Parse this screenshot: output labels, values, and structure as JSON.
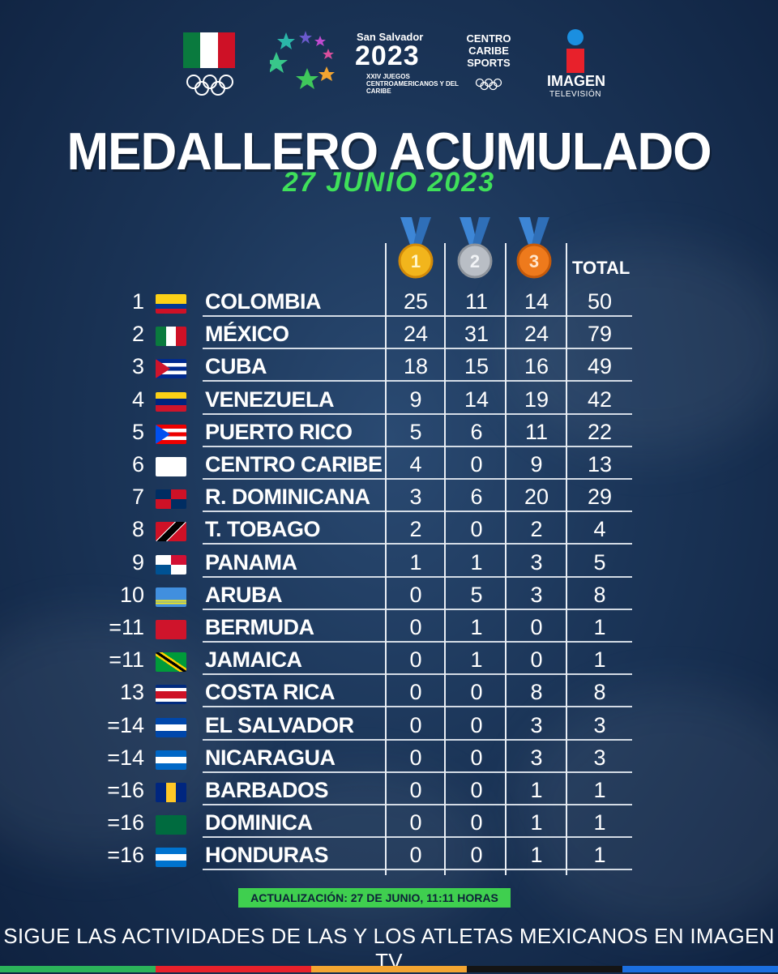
{
  "header": {
    "ss_line1": "San Salvador",
    "ss_year": "2023",
    "ss_sub": "XXIV JUEGOS CENTROAMERICANOS Y DEL CARIBE",
    "ccs": "CENTRO CARIBE SPORTS",
    "imagen": "IMAGEN",
    "imagen_sub": "TELEVISIÓN"
  },
  "title": "MEDALLERO ACUMULADO",
  "subtitle": "27 JUNIO 2023",
  "medals": {
    "gold_label": "1",
    "silver_label": "2",
    "bronze_label": "3",
    "total_label": "TOTAL",
    "colors": {
      "gold": "#f2b51c",
      "silver": "#b9bec5",
      "bronze": "#ee7a1c",
      "ribbon": "#3d86d6"
    }
  },
  "rows": [
    {
      "rank": "1",
      "country": "COLOMBIA",
      "gold": "25",
      "silver": "11",
      "bronze": "14",
      "total": "50"
    },
    {
      "rank": "2",
      "country": "MÉXICO",
      "gold": "24",
      "silver": "31",
      "bronze": "24",
      "total": "79"
    },
    {
      "rank": "3",
      "country": "CUBA",
      "gold": "18",
      "silver": "15",
      "bronze": "16",
      "total": "49"
    },
    {
      "rank": "4",
      "country": "VENEZUELA",
      "gold": "9",
      "silver": "14",
      "bronze": "19",
      "total": "42"
    },
    {
      "rank": "5",
      "country": "PUERTO RICO",
      "gold": "5",
      "silver": "6",
      "bronze": "11",
      "total": "22"
    },
    {
      "rank": "6",
      "country": "CENTRO CARIBE",
      "gold": "4",
      "silver": "0",
      "bronze": "9",
      "total": "13"
    },
    {
      "rank": "7",
      "country": "R. DOMINICANA",
      "gold": "3",
      "silver": "6",
      "bronze": "20",
      "total": "29"
    },
    {
      "rank": "8",
      "country": "T. TOBAGO",
      "gold": "2",
      "silver": "0",
      "bronze": "2",
      "total": "4"
    },
    {
      "rank": "9",
      "country": "PANAMA",
      "gold": "1",
      "silver": "1",
      "bronze": "3",
      "total": "5"
    },
    {
      "rank": "10",
      "country": "ARUBA",
      "gold": "0",
      "silver": "5",
      "bronze": "3",
      "total": "8"
    },
    {
      "rank": "=11",
      "country": "BERMUDA",
      "gold": "0",
      "silver": "1",
      "bronze": "0",
      "total": "1"
    },
    {
      "rank": "=11",
      "country": "JAMAICA",
      "gold": "0",
      "silver": "1",
      "bronze": "0",
      "total": "1"
    },
    {
      "rank": "13",
      "country": "COSTA RICA",
      "gold": "0",
      "silver": "0",
      "bronze": "8",
      "total": "8"
    },
    {
      "rank": "=14",
      "country": "EL SALVADOR",
      "gold": "0",
      "silver": "0",
      "bronze": "3",
      "total": "3"
    },
    {
      "rank": "=14",
      "country": "NICARAGUA",
      "gold": "0",
      "silver": "0",
      "bronze": "3",
      "total": "3"
    },
    {
      "rank": "=16",
      "country": "BARBADOS",
      "gold": "0",
      "silver": "0",
      "bronze": "1",
      "total": "1"
    },
    {
      "rank": "=16",
      "country": "DOMINICA",
      "gold": "0",
      "silver": "0",
      "bronze": "1",
      "total": "1"
    },
    {
      "rank": "=16",
      "country": "HONDURAS",
      "gold": "0",
      "silver": "0",
      "bronze": "1",
      "total": "1"
    }
  ],
  "update_note": "ACTUALIZACIÓN: 27 DE JUNIO, 11:11 HORAS",
  "footer": "SIGUE LAS ACTIVIDADES DE LAS Y LOS  ATLETAS MEXICANOS EN IMAGEN TV",
  "accent_green": "#3fe05a"
}
